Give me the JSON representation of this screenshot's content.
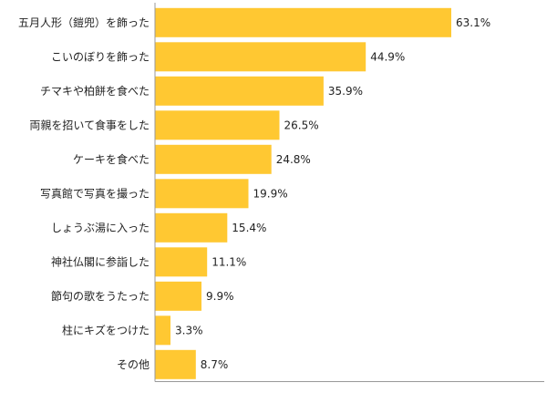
{
  "chart_data": {
    "type": "bar",
    "orientation": "horizontal",
    "categories": [
      "五月人形（鎧兜）を飾った",
      "こいのぼりを飾った",
      "チマキや柏餅を食べた",
      "両親を招いて食事をした",
      "ケーキを食べた",
      "写真館で写真を撮った",
      "しょうぶ湯に入った",
      "神社仏閣に参詣した",
      "節句の歌をうたった",
      "柱にキズをつけた",
      "その他"
    ],
    "values": [
      63.1,
      44.9,
      35.9,
      26.5,
      24.8,
      19.9,
      15.4,
      11.1,
      9.9,
      3.3,
      8.7
    ],
    "value_labels": [
      "63.1%",
      "44.9%",
      "35.9%",
      "26.5%",
      "24.8%",
      "19.9%",
      "15.4%",
      "11.1%",
      "9.9%",
      "3.3%",
      "8.7%"
    ],
    "unit": "%",
    "xlim": [
      0,
      100
    ],
    "grid": false,
    "bar_color": "#FFC832"
  }
}
